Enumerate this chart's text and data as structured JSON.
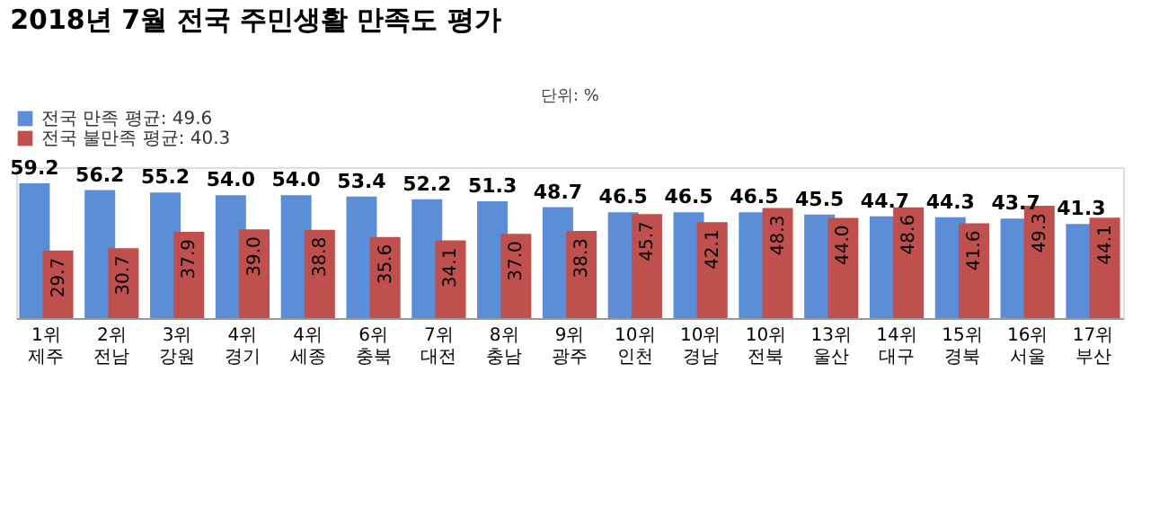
{
  "chart_data": {
    "type": "bar",
    "title": "2018년 7월 전국 주민생활 만족도 평가",
    "annotations": [
      "단위: %"
    ],
    "categories": [
      "1위 제주",
      "2위 전남",
      "3위 강원",
      "4위 경기",
      "4위 세종",
      "6위 충북",
      "7위 대전",
      "8위 충남",
      "9위 광주",
      "10위 인천",
      "10위 경남",
      "10위 전북",
      "13위 울산",
      "14위 대구",
      "15위 경북",
      "16위 서울",
      "17위 부산"
    ],
    "series": [
      {
        "name": "전국 만족 평균: 49.6",
        "color": "#5b8ed6",
        "values": [
          59.2,
          56.2,
          55.2,
          54.0,
          54.0,
          53.4,
          52.2,
          51.3,
          48.7,
          46.5,
          46.5,
          46.5,
          45.5,
          44.7,
          44.3,
          43.7,
          41.3
        ],
        "value_labels": [
          "59.2",
          "56.2",
          "55.2",
          "54.0",
          "54.0",
          "53.4",
          "52.2",
          "51.3",
          "48.7",
          "46.5",
          "46.5",
          "46.5",
          "45.5",
          "44.7",
          "44.3",
          "43.7",
          "41.3"
        ]
      },
      {
        "name": "전국 불만족 평균: 40.3",
        "color": "#c0504d",
        "values": [
          29.7,
          30.7,
          37.9,
          39.0,
          38.8,
          35.6,
          34.1,
          37.0,
          38.3,
          45.7,
          42.1,
          48.3,
          44.0,
          48.6,
          41.6,
          49.3,
          44.1
        ],
        "value_labels": [
          "29.7",
          "30.7",
          "37.9",
          "39.0",
          "38.8",
          "35.6",
          "34.1",
          "37.0",
          "38.3",
          "45.7",
          "42.1",
          "48.3",
          "44.0",
          "48.6",
          "41.6",
          "49.3",
          "44.1"
        ]
      }
    ],
    "legend": "top left",
    "grid": false
  }
}
